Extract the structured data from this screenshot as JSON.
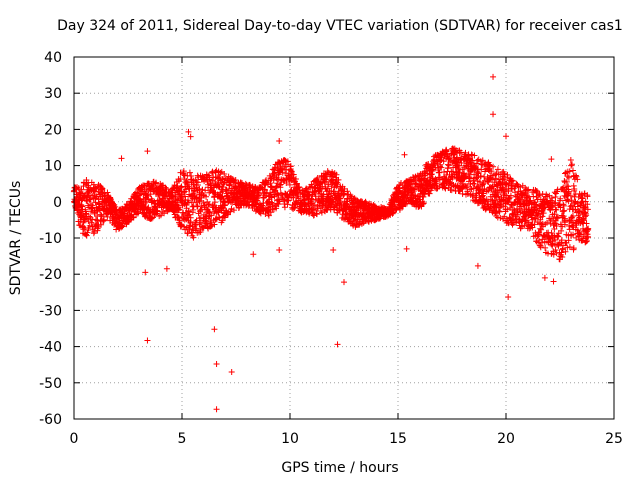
{
  "chart_data": {
    "type": "scatter",
    "title": "Day 324 of 2011, Sidereal Day-to-day VTEC variation (SDTVAR) for receiver cas1",
    "xlabel": "GPS time / hours",
    "ylabel": "SDTVAR / TECUs",
    "xlim": [
      0,
      25
    ],
    "ylim": [
      -60,
      40
    ],
    "x_ticks": [
      "0",
      "5",
      "10",
      "15",
      "20",
      "25"
    ],
    "y_ticks": [
      "40",
      "30",
      "20",
      "10",
      "0",
      "-10",
      "-20",
      "-30",
      "-40",
      "-50",
      "-60"
    ],
    "grid": true,
    "marker": "+",
    "color": "#ff0000",
    "band": {
      "x": [
        0.0,
        0.3,
        0.6,
        1.0,
        1.5,
        2.0,
        2.5,
        3.0,
        3.5,
        4.0,
        4.5,
        5.0,
        5.5,
        6.0,
        6.5,
        7.0,
        7.5,
        8.0,
        8.5,
        9.0,
        9.5,
        10.0,
        10.5,
        11.0,
        11.5,
        12.0,
        12.5,
        13.0,
        13.5,
        14.0,
        14.5,
        15.0,
        15.5,
        16.0,
        16.5,
        17.0,
        17.5,
        18.0,
        18.5,
        19.0,
        19.5,
        20.0,
        20.5,
        21.0,
        21.5,
        22.0,
        22.5,
        23.0,
        23.5,
        23.8
      ],
      "upper": [
        5,
        4,
        7,
        6,
        3,
        -2,
        0,
        4,
        6,
        5,
        3,
        9,
        8,
        7,
        9,
        8,
        6,
        5,
        4,
        7,
        12,
        11,
        3,
        5,
        8,
        9,
        4,
        1,
        0,
        -1,
        -2,
        5,
        6,
        8,
        12,
        14,
        15,
        14,
        13,
        12,
        10,
        8,
        5,
        4,
        3,
        2,
        4,
        12,
        3,
        2
      ],
      "lower": [
        -1,
        -8,
        -10,
        -9,
        -4,
        -8,
        -6,
        -3,
        -5,
        -4,
        -2,
        -8,
        -10,
        -8,
        -7,
        -5,
        -2,
        -1,
        -3,
        -4,
        -1,
        -2,
        -3,
        -4,
        -3,
        -2,
        -5,
        -7,
        -6,
        -5,
        -4,
        -3,
        0,
        -2,
        2,
        4,
        3,
        2,
        0,
        -2,
        -4,
        -6,
        -7,
        -8,
        -12,
        -15,
        -16,
        -14,
        -11,
        -12
      ]
    },
    "outliers": [
      {
        "x": 19.4,
        "y": 34.5
      },
      {
        "x": 19.4,
        "y": 24.2
      },
      {
        "x": 20.0,
        "y": 18.1
      },
      {
        "x": 5.3,
        "y": 19.3
      },
      {
        "x": 5.4,
        "y": 18.0
      },
      {
        "x": 9.5,
        "y": 16.8
      },
      {
        "x": 3.4,
        "y": 14.0
      },
      {
        "x": 15.3,
        "y": 13.0
      },
      {
        "x": 22.1,
        "y": 11.8
      },
      {
        "x": 2.2,
        "y": 12.0
      },
      {
        "x": 3.3,
        "y": -19.5
      },
      {
        "x": 4.3,
        "y": -18.5
      },
      {
        "x": 8.3,
        "y": -14.5
      },
      {
        "x": 9.5,
        "y": -13.3
      },
      {
        "x": 12.0,
        "y": -13.3
      },
      {
        "x": 15.4,
        "y": -13.0
      },
      {
        "x": 18.7,
        "y": -17.7
      },
      {
        "x": 21.8,
        "y": -21.0
      },
      {
        "x": 22.2,
        "y": -22.0
      },
      {
        "x": 20.1,
        "y": -26.3
      },
      {
        "x": 12.5,
        "y": -22.2
      },
      {
        "x": 3.4,
        "y": -38.3
      },
      {
        "x": 6.5,
        "y": -35.2
      },
      {
        "x": 12.2,
        "y": -39.4
      },
      {
        "x": 6.6,
        "y": -44.8
      },
      {
        "x": 7.3,
        "y": -47.0
      },
      {
        "x": 6.6,
        "y": -57.3
      }
    ]
  }
}
